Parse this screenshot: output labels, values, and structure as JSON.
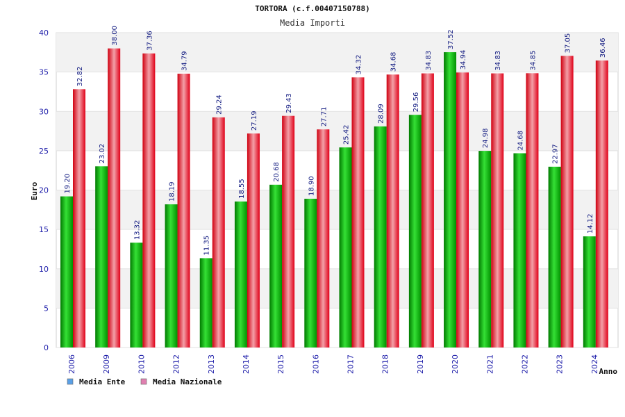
{
  "chart_data": {
    "type": "bar",
    "title": "TORTORA (c.f.00407150788)",
    "subtitle": "Media Importi",
    "ylabel": "Euro",
    "xlabel": "Anno",
    "ylim": [
      0,
      40
    ],
    "yticks": [
      0,
      5,
      10,
      15,
      20,
      25,
      30,
      35,
      40
    ],
    "grid": true,
    "legend_position": "bottom-left",
    "categories": [
      "2006",
      "2009",
      "2010",
      "2012",
      "2013",
      "2014",
      "2015",
      "2016",
      "2017",
      "2018",
      "2019",
      "2020",
      "2021",
      "2022",
      "2023",
      "2024"
    ],
    "series": [
      {
        "name": "Media Ente",
        "color": "#00b000",
        "legend_color": "#5aa0e6",
        "values": [
          19.2,
          23.02,
          13.32,
          18.19,
          11.35,
          18.55,
          20.68,
          18.9,
          25.42,
          28.09,
          29.56,
          37.52,
          24.98,
          24.68,
          22.97,
          14.12
        ],
        "labels": [
          "19.20",
          "23.02",
          "13.32",
          "18.19",
          "11.35",
          "18.55",
          "20.68",
          "18.90",
          "25.42",
          "28.09",
          "29.56",
          "37.52",
          "24.98",
          "24.68",
          "22.97",
          "14.12"
        ]
      },
      {
        "name": "Media Nazionale",
        "color": "#e8101c",
        "legend_color": "#e080b0",
        "values": [
          32.82,
          38.0,
          37.36,
          34.79,
          29.24,
          27.19,
          29.43,
          27.71,
          34.32,
          34.68,
          34.83,
          34.94,
          34.83,
          34.85,
          37.05,
          36.46
        ],
        "labels": [
          "32.82",
          "38.00",
          "37.36",
          "34.79",
          "29.24",
          "27.19",
          "29.43",
          "27.71",
          "34.32",
          "34.68",
          "34.83",
          "34.94",
          "34.83",
          "34.85",
          "37.05",
          "36.46"
        ]
      }
    ]
  }
}
